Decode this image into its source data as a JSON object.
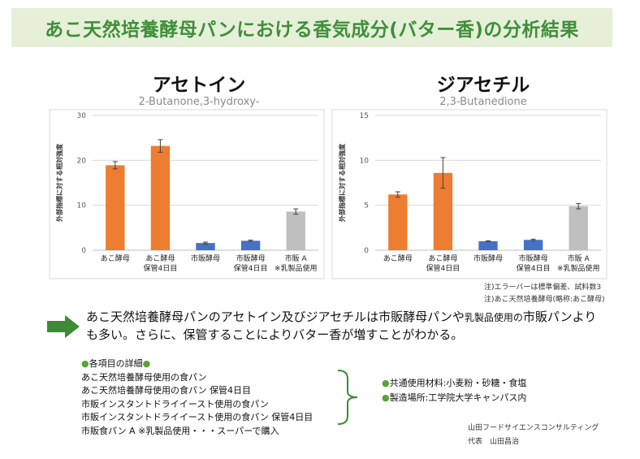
{
  "header": {
    "title": "あこ天然培養酵母パンにおける香気成分(バター香)の分析結果"
  },
  "chart_data": [
    {
      "type": "bar",
      "title": "アセトイン",
      "subtitle": "2-Butanone,3-hydroxy-",
      "ylabel": "外部指標に対する相対強度",
      "ylim": [
        0,
        30
      ],
      "yticks": [
        0,
        10,
        20,
        30
      ],
      "grid": true,
      "categories": [
        [
          "あこ酵母"
        ],
        [
          "あこ酵母",
          "保管4日目"
        ],
        [
          "市販酵母"
        ],
        [
          "市販酵母",
          "保管4日目"
        ],
        [
          "市販 A",
          "※乳製品使用"
        ]
      ],
      "values": [
        18.9,
        23.2,
        1.6,
        2.1,
        8.6
      ],
      "errors": [
        0.8,
        1.4,
        0.2,
        0.15,
        0.6
      ],
      "colors": [
        "#ed7d31",
        "#ed7d31",
        "#4472c4",
        "#4472c4",
        "#bfbfbf"
      ]
    },
    {
      "type": "bar",
      "title": "ジアセチル",
      "subtitle": "2,3-Butanedione",
      "ylabel": "外部指標に対する相対強度",
      "ylim": [
        0,
        15
      ],
      "yticks": [
        0,
        5,
        10,
        15
      ],
      "grid": true,
      "categories": [
        [
          "あこ酵母"
        ],
        [
          "あこ酵母",
          "保管4日目"
        ],
        [
          "市販酵母"
        ],
        [
          "市販酵母",
          "保管4日目"
        ],
        [
          "市販 A",
          "※乳製品使用"
        ]
      ],
      "values": [
        6.2,
        8.6,
        1.0,
        1.15,
        4.9
      ],
      "errors": [
        0.3,
        1.7,
        0.05,
        0.08,
        0.3
      ],
      "colors": [
        "#ed7d31",
        "#ed7d31",
        "#4472c4",
        "#4472c4",
        "#bfbfbf"
      ]
    }
  ],
  "notes": {
    "line1": "注)エラーバーは標準偏差、試料数3",
    "line2": "注)あこ天然培養酵母(略称:あこ酵母)"
  },
  "conclusion": {
    "part1": "あこ天然培養酵母パンのアセトイン及びジアセチルは市販酵母パンや",
    "part_small": "乳製品使用の",
    "part2": "市販パンより",
    "line2": "も多い。さらに、保管することによりバター香が増すことがわかる。"
  },
  "details": {
    "heading": "各項目の詳細",
    "items": [
      "あこ天然培養酵母使用の食パン",
      "あこ天然培養酵母使用の食パン 保管4日目",
      "市販インスタントドライイースト使用の食パン",
      "市販インスタントドライイースト使用の食パン 保管4日目",
      "市販食パン A ※乳製品使用・・・スーパーで購入"
    ]
  },
  "common": {
    "materials": "共通使用材料:小麦粉・砂糖・食塩",
    "place": "製造場所:工学院大学キャンパス内"
  },
  "credit": {
    "company": "山田フードサイエンスコンサルティング",
    "representative": "代表　山田昌治"
  },
  "colors": {
    "accent_green": "#3f8f3a",
    "title_bg": "#e6f0d9",
    "arrow_green": "#3d8b37"
  }
}
